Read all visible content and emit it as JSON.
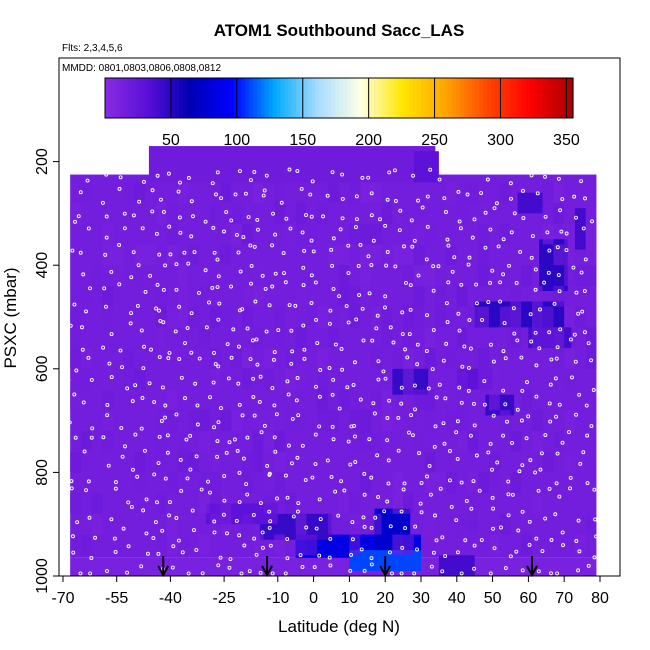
{
  "chart_data": {
    "type": "heatmap",
    "title": "ATOM1 Southbound Sacc_LAS",
    "flights_note": "Flts: 2,3,4,5,6",
    "dates_note": "MMDD: 0801,0803,0806,0808,0812",
    "xlabel": "Latitude (deg N)",
    "ylabel": "PSXC (mbar)",
    "xlim": [
      -70,
      80
    ],
    "ylim": [
      1000,
      0
    ],
    "x_ticks": [
      -70,
      -55,
      -40,
      -25,
      -10,
      0,
      10,
      20,
      30,
      40,
      50,
      60,
      70,
      80
    ],
    "x_tick_labels": [
      "-70",
      "-55",
      "-40",
      "-25",
      "-10",
      "0",
      "10",
      "20",
      "30",
      "40",
      "50",
      "60",
      "70",
      "80"
    ],
    "y_ticks": [
      200,
      400,
      600,
      800,
      1000
    ],
    "y_tick_labels": [
      "200",
      "400",
      "600",
      "800",
      "1000"
    ],
    "colorbar": {
      "range": [
        0,
        355
      ],
      "ticks": [
        50,
        100,
        150,
        200,
        250,
        300,
        350
      ],
      "tick_labels": [
        "50",
        "100",
        "150",
        "200",
        "250",
        "300",
        "350"
      ],
      "colors": [
        "#8a2be2",
        "#5a0fd8",
        "#0000b3",
        "#0000ff",
        "#00aaff",
        "#a8dcff",
        "#ffffe6",
        "#ffe600",
        "#ffa500",
        "#ff4500",
        "#ff0000",
        "#a50000"
      ]
    },
    "background_value": 15,
    "background_color": "#8a2be2",
    "regions": [
      {
        "lat": [
          -68,
          79
        ],
        "p": [
          225,
          965
        ],
        "value": 15
      },
      {
        "lat": [
          -46,
          34
        ],
        "p": [
          170,
          240
        ],
        "value": 18
      },
      {
        "lat": [
          -68,
          79
        ],
        "p": [
          965,
          1000
        ],
        "value": 12
      },
      {
        "lat": [
          -5,
          30
        ],
        "p": [
          920,
          965
        ],
        "value": 85
      },
      {
        "lat": [
          10,
          30
        ],
        "p": [
          950,
          990
        ],
        "value": 110
      },
      {
        "lat": [
          17,
          27
        ],
        "p": [
          870,
          950
        ],
        "value": 75
      },
      {
        "lat": [
          -15,
          5
        ],
        "p": [
          880,
          930
        ],
        "value": 45
      },
      {
        "lat": [
          22,
          32
        ],
        "p": [
          600,
          650
        ],
        "value": 45
      },
      {
        "lat": [
          45,
          70
        ],
        "p": [
          470,
          520
        ],
        "value": 50
      },
      {
        "lat": [
          48,
          56
        ],
        "p": [
          650,
          690
        ],
        "value": 45
      },
      {
        "lat": [
          60,
          72
        ],
        "p": [
          520,
          560
        ],
        "value": 40
      },
      {
        "lat": [
          63,
          71
        ],
        "p": [
          350,
          450
        ],
        "value": 50
      },
      {
        "lat": [
          57,
          64
        ],
        "p": [
          260,
          300
        ],
        "value": 40
      },
      {
        "lat": [
          73,
          76
        ],
        "p": [
          290,
          370
        ],
        "value": 40
      },
      {
        "lat": [
          28,
          35
        ],
        "p": [
          180,
          240
        ],
        "value": 30
      },
      {
        "lat": [
          -30,
          -10
        ],
        "p": [
          860,
          900
        ],
        "value": 30
      },
      {
        "lat": [
          35,
          45
        ],
        "p": [
          960,
          1000
        ],
        "value": 40
      },
      {
        "lat": [
          40,
          50
        ],
        "p": [
          600,
          640
        ],
        "value": 30
      }
    ],
    "obs_profiles_lat": [
      -68,
      -64,
      -58,
      -53,
      -49,
      -45,
      -42,
      -38,
      -34,
      -29,
      -26,
      -22,
      -19,
      -15,
      -12,
      -8,
      -4,
      0,
      4,
      8,
      12,
      16,
      20,
      24,
      28,
      32,
      36,
      40,
      44,
      48,
      52,
      56,
      60,
      64,
      68,
      72,
      76
    ],
    "arrows_lat": [
      -42,
      -13,
      20,
      61
    ]
  }
}
